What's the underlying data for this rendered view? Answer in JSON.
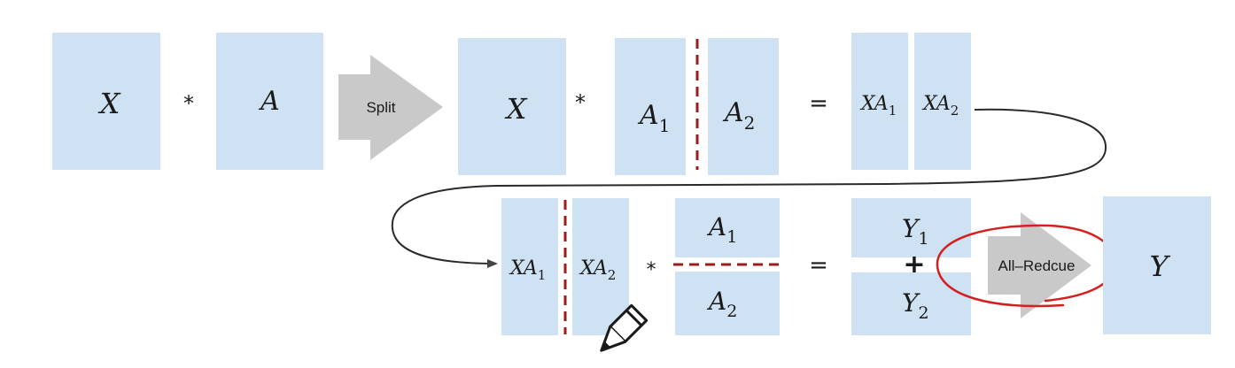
{
  "stage1": {
    "x": "X",
    "times": "*",
    "a": "A"
  },
  "split_arrow": {
    "label": "Split"
  },
  "stage2": {
    "x": "X",
    "times": "*",
    "a1_base": "A",
    "a1_sub": "1",
    "a2_base": "A",
    "a2_sub": "2",
    "equals": "=",
    "xa1_base": "XA",
    "xa1_sub": "1",
    "xa2_base": "XA",
    "xa2_sub": "2"
  },
  "stage3": {
    "xa1_base": "XA",
    "xa1_sub": "1",
    "xa2_base": "XA",
    "xa2_sub": "2",
    "times": "*",
    "a1_base": "A",
    "a1_sub": "1",
    "a2_base": "A",
    "a2_sub": "2",
    "equals": "=",
    "y1_base": "Y",
    "y1_sub": "1",
    "plus": "+",
    "y2_base": "Y",
    "y2_sub": "2",
    "y": "Y"
  },
  "allreduce_arrow": {
    "label": "All–Redcue"
  },
  "colors": {
    "box_fill": "#cfe2f3",
    "arrow_fill": "#c9c9c9",
    "split_line": "#9b1c1c",
    "annotation_circle": "#d42020",
    "connector": "#2a2a2a"
  },
  "icons": {
    "cursor": "pencil-icon"
  }
}
